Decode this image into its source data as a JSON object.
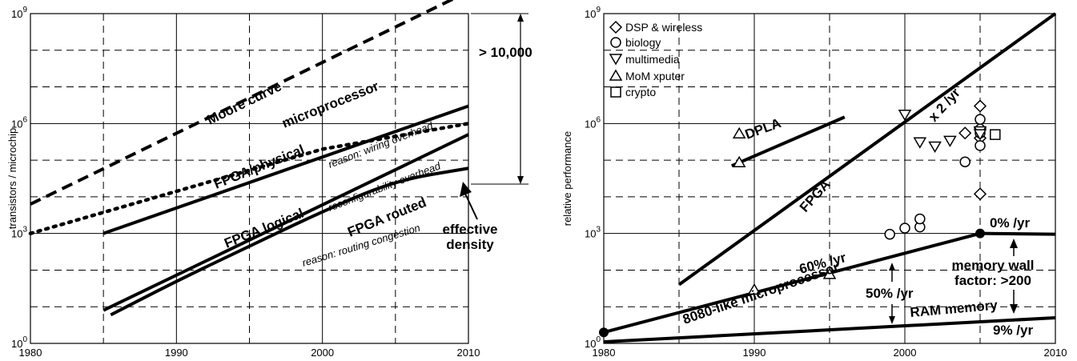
{
  "chart_data": [
    {
      "type": "line",
      "xlabel": "",
      "ylabel": "transistors / microchip",
      "xlim": [
        1980,
        2010
      ],
      "ylim": [
        1,
        1000000000
      ],
      "yscale": "log",
      "x_ticks": [
        "1980",
        "1990",
        "2000",
        "2010"
      ],
      "y_ticks": [
        {
          "base": "10",
          "exp": "0"
        },
        {
          "base": "10",
          "exp": "3"
        },
        {
          "base": "10",
          "exp": "6"
        },
        {
          "base": "10",
          "exp": "9"
        }
      ],
      "grid": true,
      "series": [
        {
          "name": "Moore curve",
          "style": "dashed",
          "x": [
            1980,
            2010
          ],
          "y": [
            6300,
            4000000000
          ]
        },
        {
          "name": "microprocessor",
          "style": "dotted",
          "x": [
            1980,
            2000,
            2010
          ],
          "y": [
            1000,
            200000,
            1000000
          ]
        },
        {
          "name": "FPGA/physical",
          "style": "solid",
          "x": [
            1985,
            2010
          ],
          "y": [
            1000,
            3000000
          ]
        },
        {
          "name": "FPGA logical",
          "style": "solid",
          "x": [
            1985,
            2010
          ],
          "y": [
            8,
            500000
          ]
        },
        {
          "name": "FPGA routed",
          "style": "solid",
          "x": [
            1985.5,
            1990,
            1995,
            2000,
            2005,
            2010
          ],
          "y": [
            6,
            50,
            450,
            4000,
            28000,
            60000
          ]
        }
      ],
      "annotations": {
        "wiring": "reason: wiring overhead",
        "reconfig": "reconfigurability overhead",
        "routing": "reason: routing congestion",
        "effective_1": "effective",
        "effective_2": "density",
        "gap": "> 10,000"
      }
    },
    {
      "type": "scatter",
      "xlabel": "",
      "ylabel": "relative performance",
      "xlim": [
        1980,
        2010
      ],
      "ylim": [
        1,
        1000000000
      ],
      "yscale": "log",
      "x_ticks": [
        "1980",
        "1990",
        "2000",
        "2010"
      ],
      "y_ticks": [
        {
          "base": "10",
          "exp": "0"
        },
        {
          "base": "10",
          "exp": "3"
        },
        {
          "base": "10",
          "exp": "6"
        },
        {
          "base": "10",
          "exp": "9"
        }
      ],
      "grid": true,
      "legend_position": "top-left",
      "lines": [
        {
          "name": "x 2 /yr",
          "label": "FPGA",
          "x": [
            1985,
            2010
          ],
          "y": [
            40,
            1000000000
          ]
        },
        {
          "name": "DPLA",
          "x": [
            1988.5,
            1996
          ],
          "y": [
            70000,
            1500000
          ]
        },
        {
          "name": "8080-like microprocessor",
          "label": "60% /yr",
          "x": [
            1980,
            2005
          ],
          "y": [
            2,
            1000
          ]
        },
        {
          "name": "0% /yr",
          "x": [
            2005,
            2010
          ],
          "y": [
            1000,
            950
          ]
        },
        {
          "name": "RAM memory",
          "label": "9% /yr",
          "x": [
            1980,
            2010
          ],
          "y": [
            1.1,
            5
          ]
        }
      ],
      "series": [
        {
          "name": "DSP & wireless",
          "marker": "diamond",
          "x": [
            2004,
            2005,
            2005,
            2005,
            2005
          ],
          "y": [
            550000,
            3000000,
            400000,
            750000,
            12000
          ]
        },
        {
          "name": "biology",
          "marker": "circle",
          "x": [
            1999,
            2000,
            2001,
            2001,
            2004,
            2005,
            2005,
            2005
          ],
          "y": [
            950,
            1400,
            1500,
            2500,
            90000,
            1300000,
            550000,
            250000
          ]
        },
        {
          "name": "multimedia",
          "marker": "triangle-down",
          "x": [
            2000,
            2001,
            2002,
            2003,
            2005,
            2005
          ],
          "y": [
            1700000,
            300000,
            230000,
            330000,
            600000,
            500000
          ]
        },
        {
          "name": "MoM xputer",
          "marker": "triangle-up",
          "x": [
            1989,
            1989,
            1990,
            1995
          ],
          "y": [
            550000,
            90000,
            30,
            80
          ]
        },
        {
          "name": "crypto",
          "marker": "square",
          "x": [
            2006
          ],
          "y": [
            500000
          ]
        }
      ],
      "annotations": {
        "rate_50": "50% /yr",
        "wall_1": "memory wall",
        "wall_2": "factor: >200"
      }
    }
  ]
}
